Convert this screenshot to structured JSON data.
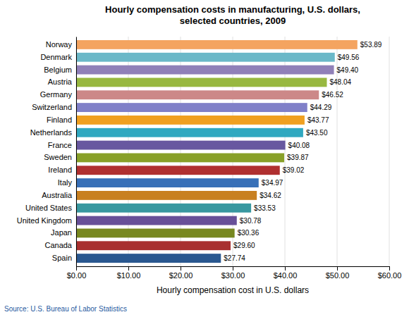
{
  "chart_data": {
    "type": "bar",
    "orientation": "horizontal",
    "title": "Hourly compensation costs in manufacturing,  U.S. dollars,\nselected countries, 2009",
    "categories": [
      "Norway",
      "Denmark",
      "Belgium",
      "Austria",
      "Germany",
      "Switzerland",
      "Finland",
      "Netherlands",
      "France",
      "Sweden",
      "Ireland",
      "Italy",
      "Australia",
      "United States",
      "United Kingdom",
      "Japan",
      "Canada",
      "Spain"
    ],
    "values": [
      53.89,
      49.56,
      49.4,
      48.04,
      46.52,
      44.29,
      43.77,
      43.5,
      40.08,
      39.87,
      39.02,
      34.97,
      34.62,
      33.53,
      30.78,
      30.36,
      29.6,
      27.74
    ],
    "value_labels": [
      "$53.89",
      "$49.56",
      "$49.40",
      "$48.04",
      "$46.52",
      "$44.29",
      "$43.77",
      "$43.50",
      "$40.08",
      "$39.87",
      "$39.02",
      "$34.97",
      "$34.62",
      "$33.53",
      "$30.78",
      "$30.36",
      "$29.60",
      "$27.74"
    ],
    "data_labels": true,
    "colors": [
      "#F4A460",
      "#6BB8C8",
      "#9080B8",
      "#98B840",
      "#CC8888",
      "#8080C8",
      "#F0A020",
      "#30A8C0",
      "#6858A0",
      "#88A028",
      "#B03030",
      "#3870B8",
      "#C88020",
      "#3898A0",
      "#685098",
      "#788820",
      "#A83030",
      "#2A5890"
    ],
    "xlabel": "Hourly compensation cost in U.S. dollars",
    "xlim": [
      0,
      60
    ],
    "xticks": [
      {
        "value": 0,
        "label": "$0.00"
      },
      {
        "value": 10,
        "label": "$10.00"
      },
      {
        "value": 20,
        "label": "$20.00"
      },
      {
        "value": 30,
        "label": "$30.00"
      },
      {
        "value": 40,
        "label": "$40.00"
      },
      {
        "value": 50,
        "label": "$50.00"
      },
      {
        "value": 60,
        "label": "$60.00"
      }
    ],
    "grid": true,
    "annotations": [
      "Source: U.S. Bureau of Labor Statistics"
    ]
  }
}
